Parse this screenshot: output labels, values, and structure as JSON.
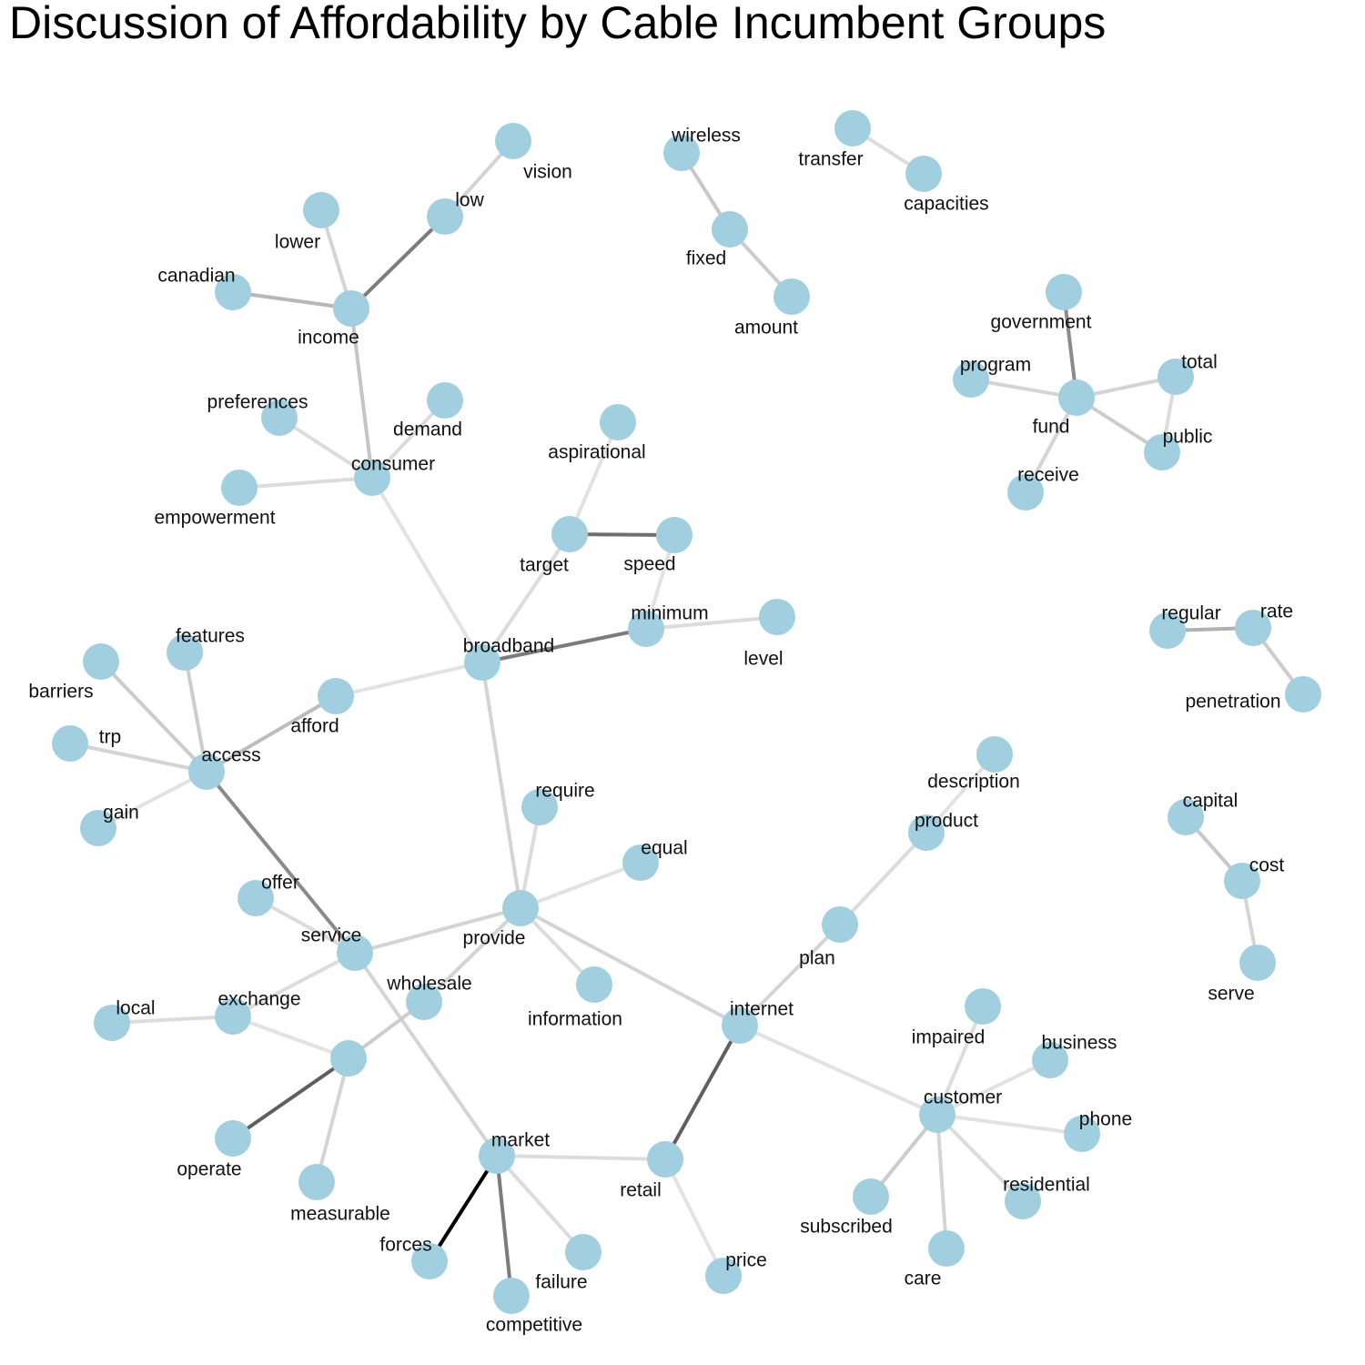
{
  "title": "Discussion of Affordability by Cable Incumbent Groups",
  "colors": {
    "node": "#a1cfdf",
    "text": "#111111",
    "background": "#ffffff"
  },
  "nodes": [
    {
      "id": "vision",
      "label": "vision"
    },
    {
      "id": "low",
      "label": "low"
    },
    {
      "id": "lower",
      "label": "lower"
    },
    {
      "id": "canadian",
      "label": "canadian"
    },
    {
      "id": "income",
      "label": "income"
    },
    {
      "id": "preferences",
      "label": "preferences"
    },
    {
      "id": "demand",
      "label": "demand"
    },
    {
      "id": "consumer",
      "label": "consumer"
    },
    {
      "id": "empowerment",
      "label": "empowerment"
    },
    {
      "id": "wireless",
      "label": "wireless"
    },
    {
      "id": "fixed",
      "label": "fixed"
    },
    {
      "id": "amount",
      "label": "amount"
    },
    {
      "id": "transfer",
      "label": "transfer"
    },
    {
      "id": "capacities",
      "label": "capacities"
    },
    {
      "id": "government",
      "label": "government"
    },
    {
      "id": "program",
      "label": "program"
    },
    {
      "id": "fund",
      "label": "fund"
    },
    {
      "id": "total",
      "label": "total"
    },
    {
      "id": "public",
      "label": "public"
    },
    {
      "id": "receive",
      "label": "receive"
    },
    {
      "id": "aspirational",
      "label": "aspirational"
    },
    {
      "id": "target",
      "label": "target"
    },
    {
      "id": "speed",
      "label": "speed"
    },
    {
      "id": "minimum",
      "label": "minimum"
    },
    {
      "id": "level",
      "label": "level"
    },
    {
      "id": "broadband",
      "label": "broadband"
    },
    {
      "id": "regular",
      "label": "regular"
    },
    {
      "id": "rate",
      "label": "rate"
    },
    {
      "id": "penetration",
      "label": "penetration"
    },
    {
      "id": "features",
      "label": "features"
    },
    {
      "id": "barriers",
      "label": "barriers"
    },
    {
      "id": "afford",
      "label": "afford"
    },
    {
      "id": "trp",
      "label": "trp"
    },
    {
      "id": "access",
      "label": "access"
    },
    {
      "id": "gain",
      "label": "gain"
    },
    {
      "id": "description",
      "label": "description"
    },
    {
      "id": "product",
      "label": "product"
    },
    {
      "id": "capital",
      "label": "capital"
    },
    {
      "id": "cost",
      "label": "cost"
    },
    {
      "id": "serve",
      "label": "serve"
    },
    {
      "id": "require",
      "label": "require"
    },
    {
      "id": "equal",
      "label": "equal"
    },
    {
      "id": "offer",
      "label": "offer"
    },
    {
      "id": "provide",
      "label": "provide"
    },
    {
      "id": "service",
      "label": "service"
    },
    {
      "id": "plan",
      "label": "plan"
    },
    {
      "id": "exchange",
      "label": "exchange"
    },
    {
      "id": "wholesale",
      "label": "wholesale"
    },
    {
      "id": "local",
      "label": "local"
    },
    {
      "id": "information",
      "label": "information"
    },
    {
      "id": "internet",
      "label": "internet"
    },
    {
      "id": "impaired",
      "label": "impaired"
    },
    {
      "id": "business",
      "label": "business"
    },
    {
      "id": "unlabeled",
      "label": ""
    },
    {
      "id": "customer",
      "label": "customer"
    },
    {
      "id": "phone",
      "label": "phone"
    },
    {
      "id": "operate",
      "label": "operate"
    },
    {
      "id": "market",
      "label": "market"
    },
    {
      "id": "retail",
      "label": "retail"
    },
    {
      "id": "residential",
      "label": "residential"
    },
    {
      "id": "measurable",
      "label": "measurable"
    },
    {
      "id": "subscribed",
      "label": "subscribed"
    },
    {
      "id": "forces",
      "label": "forces"
    },
    {
      "id": "failure",
      "label": "failure"
    },
    {
      "id": "price",
      "label": "price"
    },
    {
      "id": "care",
      "label": "care"
    },
    {
      "id": "competitive",
      "label": "competitive"
    }
  ],
  "edges": [
    {
      "from": "vision",
      "to": "low",
      "color": "#d4d4d4"
    },
    {
      "from": "low",
      "to": "income",
      "color": "#7b7b7b"
    },
    {
      "from": "lower",
      "to": "income",
      "color": "#d4d4d4"
    },
    {
      "from": "canadian",
      "to": "income",
      "color": "#b8b8b8"
    },
    {
      "from": "income",
      "to": "consumer",
      "color": "#c4c4c4"
    },
    {
      "from": "preferences",
      "to": "consumer",
      "color": "#dcdcdc"
    },
    {
      "from": "demand",
      "to": "consumer",
      "color": "#dcdcdc"
    },
    {
      "from": "empowerment",
      "to": "consumer",
      "color": "#dcdcdc"
    },
    {
      "from": "consumer",
      "to": "broadband",
      "color": "#e2e2e2"
    },
    {
      "from": "wireless",
      "to": "fixed",
      "color": "#c8c8c8"
    },
    {
      "from": "fixed",
      "to": "amount",
      "color": "#cccccc"
    },
    {
      "from": "transfer",
      "to": "capacities",
      "color": "#dcdcdc"
    },
    {
      "from": "government",
      "to": "fund",
      "color": "#8a8a8a"
    },
    {
      "from": "program",
      "to": "fund",
      "color": "#d4d4d4"
    },
    {
      "from": "fund",
      "to": "total",
      "color": "#d4d4d4"
    },
    {
      "from": "total",
      "to": "public",
      "color": "#dcdcdc"
    },
    {
      "from": "fund",
      "to": "public",
      "color": "#cccccc"
    },
    {
      "from": "fund",
      "to": "receive",
      "color": "#d4d4d4"
    },
    {
      "from": "aspirational",
      "to": "target",
      "color": "#e2e2e2"
    },
    {
      "from": "target",
      "to": "speed",
      "color": "#6f6f6f"
    },
    {
      "from": "target",
      "to": "broadband",
      "color": "#dcdcdc"
    },
    {
      "from": "speed",
      "to": "minimum",
      "color": "#e2e2e2"
    },
    {
      "from": "minimum",
      "to": "level",
      "color": "#dcdcdc"
    },
    {
      "from": "minimum",
      "to": "broadband",
      "color": "#7b7b7b"
    },
    {
      "from": "regular",
      "to": "rate",
      "color": "#b0b0b0"
    },
    {
      "from": "rate",
      "to": "penetration",
      "color": "#cccccc"
    },
    {
      "from": "broadband",
      "to": "afford",
      "color": "#e2e2e2"
    },
    {
      "from": "broadband",
      "to": "provide",
      "color": "#d4d4d4"
    },
    {
      "from": "afford",
      "to": "access",
      "color": "#bdbdbd"
    },
    {
      "from": "features",
      "to": "access",
      "color": "#cccccc"
    },
    {
      "from": "barriers",
      "to": "access",
      "color": "#cccccc"
    },
    {
      "from": "trp",
      "to": "access",
      "color": "#d4d4d4"
    },
    {
      "from": "gain",
      "to": "access",
      "color": "#e2e2e2"
    },
    {
      "from": "access",
      "to": "service",
      "color": "#8a8a8a"
    },
    {
      "from": "description",
      "to": "product",
      "color": "#e2e2e2"
    },
    {
      "from": "product",
      "to": "plan",
      "color": "#dcdcdc"
    },
    {
      "from": "plan",
      "to": "internet",
      "color": "#d4d4d4"
    },
    {
      "from": "capital",
      "to": "cost",
      "color": "#c8c8c8"
    },
    {
      "from": "cost",
      "to": "serve",
      "color": "#d4d4d4"
    },
    {
      "from": "require",
      "to": "provide",
      "color": "#dcdcdc"
    },
    {
      "from": "equal",
      "to": "provide",
      "color": "#e2e2e2"
    },
    {
      "from": "provide",
      "to": "service",
      "color": "#d4d4d4"
    },
    {
      "from": "provide",
      "to": "wholesale",
      "color": "#d4d4d4"
    },
    {
      "from": "provide",
      "to": "information",
      "color": "#dcdcdc"
    },
    {
      "from": "provide",
      "to": "internet",
      "color": "#d4d4d4"
    },
    {
      "from": "offer",
      "to": "service",
      "color": "#dcdcdc"
    },
    {
      "from": "service",
      "to": "exchange",
      "color": "#dcdcdc"
    },
    {
      "from": "service",
      "to": "market",
      "color": "#d4d4d4"
    },
    {
      "from": "wholesale",
      "to": "unlabeled",
      "color": "#cccccc"
    },
    {
      "from": "local",
      "to": "exchange",
      "color": "#dcdcdc"
    },
    {
      "from": "exchange",
      "to": "unlabeled",
      "color": "#e2e2e2"
    },
    {
      "from": "unlabeled",
      "to": "operate",
      "color": "#5f5f5f"
    },
    {
      "from": "unlabeled",
      "to": "measurable",
      "color": "#d4d4d4"
    },
    {
      "from": "internet",
      "to": "retail",
      "color": "#5f5f5f"
    },
    {
      "from": "internet",
      "to": "customer",
      "color": "#e2e2e2"
    },
    {
      "from": "impaired",
      "to": "customer",
      "color": "#dcdcdc"
    },
    {
      "from": "business",
      "to": "customer",
      "color": "#e2e2e2"
    },
    {
      "from": "customer",
      "to": "phone",
      "color": "#e2e2e2"
    },
    {
      "from": "customer",
      "to": "residential",
      "color": "#dcdcdc"
    },
    {
      "from": "customer",
      "to": "subscribed",
      "color": "#cccccc"
    },
    {
      "from": "customer",
      "to": "care",
      "color": "#d4d4d4"
    },
    {
      "from": "market",
      "to": "retail",
      "color": "#dcdcdc"
    },
    {
      "from": "market",
      "to": "forces",
      "color": "#000000"
    },
    {
      "from": "market",
      "to": "failure",
      "color": "#dcdcdc"
    },
    {
      "from": "market",
      "to": "competitive",
      "color": "#7b7b7b"
    },
    {
      "from": "retail",
      "to": "price",
      "color": "#e2e2e2"
    }
  ]
}
